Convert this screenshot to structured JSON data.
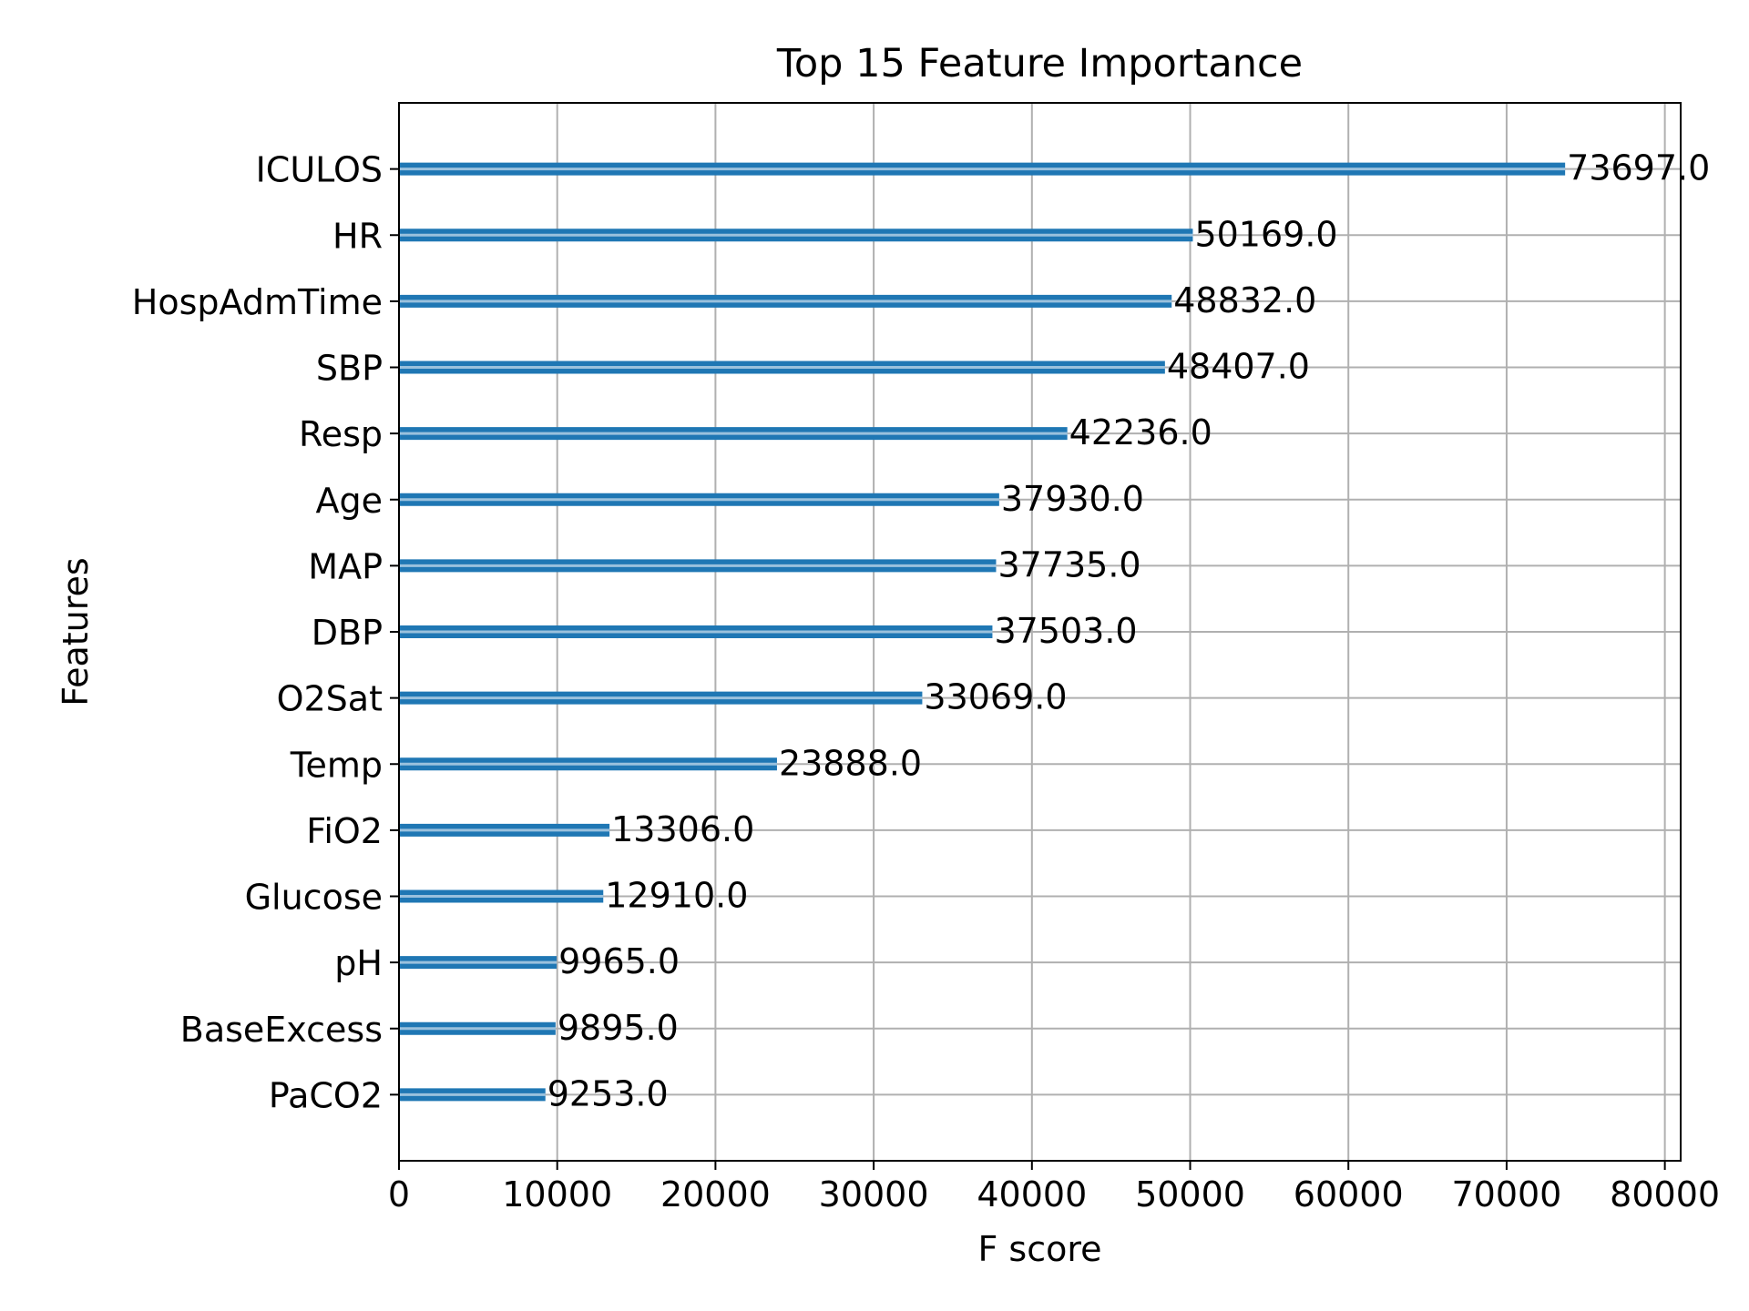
{
  "chart_data": {
    "type": "bar",
    "orientation": "horizontal",
    "title": "Top 15 Feature Importance",
    "xlabel": "F score",
    "ylabel": "Features",
    "xlim": [
      0,
      81000
    ],
    "xticks": [
      0,
      10000,
      20000,
      30000,
      40000,
      50000,
      60000,
      70000,
      80000
    ],
    "grid": true,
    "bar_color": "#1f77b4",
    "categories": [
      "ICULOS",
      "HR",
      "HospAdmTime",
      "SBP",
      "Resp",
      "Age",
      "MAP",
      "DBP",
      "O2Sat",
      "Temp",
      "FiO2",
      "Glucose",
      "pH",
      "BaseExcess",
      "PaCO2"
    ],
    "values": [
      73697.0,
      50169.0,
      48832.0,
      48407.0,
      42236.0,
      37930.0,
      37735.0,
      37503.0,
      33069.0,
      23888.0,
      13306.0,
      12910.0,
      9965.0,
      9895.0,
      9253.0
    ],
    "value_labels": [
      "73697.0",
      "50169.0",
      "48832.0",
      "48407.0",
      "42236.0",
      "37930.0",
      "37735.0",
      "37503.0",
      "33069.0",
      "23888.0",
      "13306.0",
      "12910.0",
      "9965.0",
      "9895.0",
      "9253.0"
    ]
  }
}
